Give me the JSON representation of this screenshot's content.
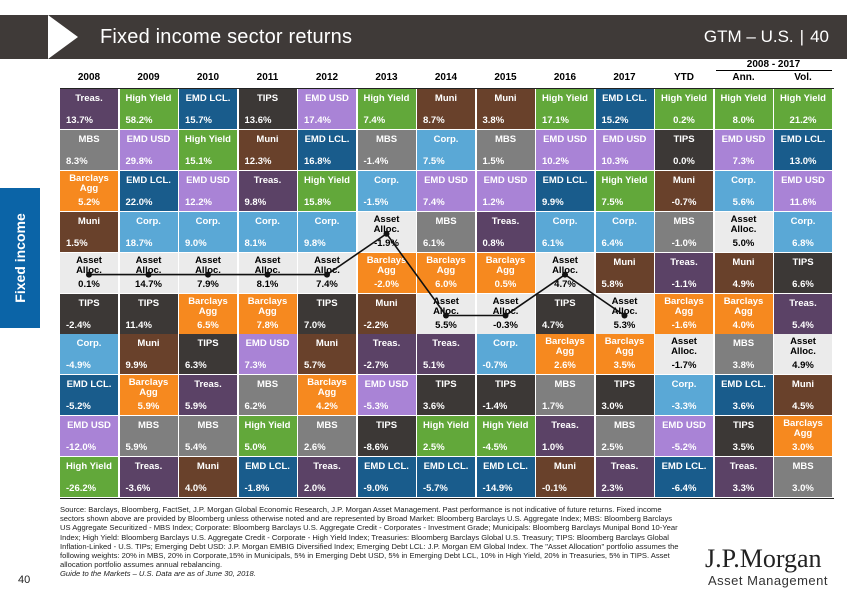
{
  "header": {
    "title": "Fixed income sector returns",
    "section": "GTM – U.S.",
    "page": "40"
  },
  "side_label": "Fixed income",
  "range_header": "2008 - 2017",
  "footnote": {
    "text": "Source: Barclays, Bloomberg, FactSet, J.P. Morgan Global Economic Research, J.P. Morgan Asset Management. Past performance is not indicative of future returns. Fixed income sectors shown above are provided by Bloomberg unless otherwise noted and are represented by Broad Market: Bloomberg Barclays U.S. Aggregate Index; MBS: Bloomberg Barclays US Aggregate Securitized - MBS Index; Corporate: Bloomberg Barclays U.S. Aggregate Credit - Corporates - Investment Grade; Municipals: Bloomberg Barclays Munipal Bond 10-Year Index; High Yield: Bloomberg Barclays U.S. Aggregate Credit - Corporate - High Yield Index; Treasuries: Bloomberg Barclays Global U.S. Treasury; TIPS: Bloomberg Barclays Global Inflation-Linked - U.S. TIPs; Emerging Debt USD: J.P. Morgan EMBIG Diversified Index; Emerging Debt LCL: J.P. Morgan EM Global Index. The \"Asset Allocation\" portfolio assumes the following weights: 20% in MBS, 20% in Corporate,15% in Municipals, 5% in Emerging Debt USD, 5% in Emerging Debt LCL, 10% in High Yield, 20% in Treasuries, 5% in TIPS. Asset allocation portfolio assumes annual rebalancing.",
    "italic": "Guide to the Markets – U.S. Data are as of June 30, 2018."
  },
  "page_number": "40",
  "logo": {
    "main": "J.P.Morgan",
    "sub": "Asset Management"
  },
  "colors": {
    "Treas.": "#5b4266",
    "High Yield": "#62a83a",
    "EMD LCL.": "#195c8c",
    "TIPS": "#3c3836",
    "EMD USD": "#a983d6",
    "Muni": "#69412b",
    "MBS": "#7f7f7f",
    "Corp.": "#5aa8d6",
    "Barclays Agg": "#f6891f",
    "Asset Alloc.": "#ebebeb"
  },
  "chart_data": {
    "type": "table",
    "title": "Fixed income sector returns",
    "columns": [
      "2008",
      "2009",
      "2010",
      "2011",
      "2012",
      "2013",
      "2014",
      "2015",
      "2016",
      "2017",
      "YTD",
      "Ann.",
      "Vol."
    ],
    "grid": [
      [
        {
          "name": "Treas.",
          "value": "13.7%"
        },
        {
          "name": "MBS",
          "value": "8.3%"
        },
        {
          "name": "Barclays Agg",
          "value": "5.2%"
        },
        {
          "name": "Muni",
          "value": "1.5%"
        },
        {
          "name": "Asset Alloc.",
          "value": "0.1%"
        },
        {
          "name": "TIPS",
          "value": "-2.4%"
        },
        {
          "name": "Corp.",
          "value": "-4.9%"
        },
        {
          "name": "EMD LCL.",
          "value": "-5.2%"
        },
        {
          "name": "EMD USD",
          "value": "-12.0%"
        },
        {
          "name": "High Yield",
          "value": "-26.2%"
        }
      ],
      [
        {
          "name": "High Yield",
          "value": "58.2%"
        },
        {
          "name": "EMD USD",
          "value": "29.8%"
        },
        {
          "name": "EMD LCL.",
          "value": "22.0%"
        },
        {
          "name": "Corp.",
          "value": "18.7%"
        },
        {
          "name": "Asset Alloc.",
          "value": "14.7%"
        },
        {
          "name": "TIPS",
          "value": "11.4%"
        },
        {
          "name": "Muni",
          "value": "9.9%"
        },
        {
          "name": "Barclays Agg",
          "value": "5.9%"
        },
        {
          "name": "MBS",
          "value": "5.9%"
        },
        {
          "name": "Treas.",
          "value": "-3.6%"
        }
      ],
      [
        {
          "name": "EMD LCL.",
          "value": "15.7%"
        },
        {
          "name": "High Yield",
          "value": "15.1%"
        },
        {
          "name": "EMD USD",
          "value": "12.2%"
        },
        {
          "name": "Corp.",
          "value": "9.0%"
        },
        {
          "name": "Asset Alloc.",
          "value": "7.9%"
        },
        {
          "name": "Barclays Agg",
          "value": "6.5%"
        },
        {
          "name": "TIPS",
          "value": "6.3%"
        },
        {
          "name": "Treas.",
          "value": "5.9%"
        },
        {
          "name": "MBS",
          "value": "5.4%"
        },
        {
          "name": "Muni",
          "value": "4.0%"
        }
      ],
      [
        {
          "name": "TIPS",
          "value": "13.6%"
        },
        {
          "name": "Muni",
          "value": "12.3%"
        },
        {
          "name": "Treas.",
          "value": "9.8%"
        },
        {
          "name": "Corp.",
          "value": "8.1%"
        },
        {
          "name": "Asset Alloc.",
          "value": "8.1%"
        },
        {
          "name": "Barclays Agg",
          "value": "7.8%"
        },
        {
          "name": "EMD USD",
          "value": "7.3%"
        },
        {
          "name": "MBS",
          "value": "6.2%"
        },
        {
          "name": "High Yield",
          "value": "5.0%"
        },
        {
          "name": "EMD LCL.",
          "value": "-1.8%"
        }
      ],
      [
        {
          "name": "EMD USD",
          "value": "17.4%"
        },
        {
          "name": "EMD LCL.",
          "value": "16.8%"
        },
        {
          "name": "High Yield",
          "value": "15.8%"
        },
        {
          "name": "Corp.",
          "value": "9.8%"
        },
        {
          "name": "Asset Alloc.",
          "value": "7.4%"
        },
        {
          "name": "TIPS",
          "value": "7.0%"
        },
        {
          "name": "Muni",
          "value": "5.7%"
        },
        {
          "name": "Barclays Agg",
          "value": "4.2%"
        },
        {
          "name": "MBS",
          "value": "2.6%"
        },
        {
          "name": "Treas.",
          "value": "2.0%"
        }
      ],
      [
        {
          "name": "High Yield",
          "value": "7.4%"
        },
        {
          "name": "MBS",
          "value": "-1.4%"
        },
        {
          "name": "Corp.",
          "value": "-1.5%"
        },
        {
          "name": "Asset Alloc.",
          "value": "-1.9%"
        },
        {
          "name": "Barclays Agg",
          "value": "-2.0%"
        },
        {
          "name": "Muni",
          "value": "-2.2%"
        },
        {
          "name": "Treas.",
          "value": "-2.7%"
        },
        {
          "name": "EMD USD",
          "value": "-5.3%"
        },
        {
          "name": "TIPS",
          "value": "-8.6%"
        },
        {
          "name": "EMD LCL.",
          "value": "-9.0%"
        }
      ],
      [
        {
          "name": "Muni",
          "value": "8.7%"
        },
        {
          "name": "Corp.",
          "value": "7.5%"
        },
        {
          "name": "EMD USD",
          "value": "7.4%"
        },
        {
          "name": "MBS",
          "value": "6.1%"
        },
        {
          "name": "Barclays Agg",
          "value": "6.0%"
        },
        {
          "name": "Asset Alloc.",
          "value": "5.5%"
        },
        {
          "name": "Treas.",
          "value": "5.1%"
        },
        {
          "name": "TIPS",
          "value": "3.6%"
        },
        {
          "name": "High Yield",
          "value": "2.5%"
        },
        {
          "name": "EMD LCL.",
          "value": "-5.7%"
        }
      ],
      [
        {
          "name": "Muni",
          "value": "3.8%"
        },
        {
          "name": "MBS",
          "value": "1.5%"
        },
        {
          "name": "EMD USD",
          "value": "1.2%"
        },
        {
          "name": "Treas.",
          "value": "0.8%"
        },
        {
          "name": "Barclays Agg",
          "value": "0.5%"
        },
        {
          "name": "Asset Alloc.",
          "value": "-0.3%"
        },
        {
          "name": "Corp.",
          "value": "-0.7%"
        },
        {
          "name": "TIPS",
          "value": "-1.4%"
        },
        {
          "name": "High Yield",
          "value": "-4.5%"
        },
        {
          "name": "EMD LCL.",
          "value": "-14.9%"
        }
      ],
      [
        {
          "name": "High Yield",
          "value": "17.1%"
        },
        {
          "name": "EMD USD",
          "value": "10.2%"
        },
        {
          "name": "EMD LCL.",
          "value": "9.9%"
        },
        {
          "name": "Corp.",
          "value": "6.1%"
        },
        {
          "name": "Asset Alloc.",
          "value": "4.7%"
        },
        {
          "name": "TIPS",
          "value": "4.7%"
        },
        {
          "name": "Barclays Agg",
          "value": "2.6%"
        },
        {
          "name": "MBS",
          "value": "1.7%"
        },
        {
          "name": "Treas.",
          "value": "1.0%"
        },
        {
          "name": "Muni",
          "value": "-0.1%"
        }
      ],
      [
        {
          "name": "EMD LCL.",
          "value": "15.2%"
        },
        {
          "name": "EMD USD",
          "value": "10.3%"
        },
        {
          "name": "High Yield",
          "value": "7.5%"
        },
        {
          "name": "Corp.",
          "value": "6.4%"
        },
        {
          "name": "Muni",
          "value": "5.8%"
        },
        {
          "name": "Asset Alloc.",
          "value": "5.3%"
        },
        {
          "name": "Barclays Agg",
          "value": "3.5%"
        },
        {
          "name": "TIPS",
          "value": "3.0%"
        },
        {
          "name": "MBS",
          "value": "2.5%"
        },
        {
          "name": "Treas.",
          "value": "2.3%"
        }
      ],
      [
        {
          "name": "High Yield",
          "value": "0.2%"
        },
        {
          "name": "TIPS",
          "value": "0.0%"
        },
        {
          "name": "Muni",
          "value": "-0.7%"
        },
        {
          "name": "MBS",
          "value": "-1.0%"
        },
        {
          "name": "Treas.",
          "value": "-1.1%"
        },
        {
          "name": "Barclays Agg",
          "value": "-1.6%"
        },
        {
          "name": "Asset Alloc.",
          "value": "-1.7%"
        },
        {
          "name": "Corp.",
          "value": "-3.3%"
        },
        {
          "name": "EMD USD",
          "value": "-5.2%"
        },
        {
          "name": "EMD LCL.",
          "value": "-6.4%"
        }
      ],
      [
        {
          "name": "High Yield",
          "value": "8.0%"
        },
        {
          "name": "EMD USD",
          "value": "7.3%"
        },
        {
          "name": "Corp.",
          "value": "5.6%"
        },
        {
          "name": "Asset Alloc.",
          "value": "5.0%"
        },
        {
          "name": "Muni",
          "value": "4.9%"
        },
        {
          "name": "Barclays Agg",
          "value": "4.0%"
        },
        {
          "name": "MBS",
          "value": "3.8%"
        },
        {
          "name": "EMD LCL.",
          "value": "3.6%"
        },
        {
          "name": "TIPS",
          "value": "3.5%"
        },
        {
          "name": "Treas.",
          "value": "3.3%"
        }
      ],
      [
        {
          "name": "High Yield",
          "value": "21.2%"
        },
        {
          "name": "EMD LCL.",
          "value": "13.0%"
        },
        {
          "name": "EMD USD",
          "value": "11.6%"
        },
        {
          "name": "Corp.",
          "value": "6.8%"
        },
        {
          "name": "TIPS",
          "value": "6.6%"
        },
        {
          "name": "Treas.",
          "value": "5.4%"
        },
        {
          "name": "Asset Alloc.",
          "value": "4.9%"
        },
        {
          "name": "Muni",
          "value": "4.5%"
        },
        {
          "name": "Barclays Agg",
          "value": "3.0%"
        },
        {
          "name": "MBS",
          "value": "3.0%"
        }
      ]
    ],
    "asset_alloc_line_columns": [
      "2008",
      "2009",
      "2010",
      "2011",
      "2012",
      "2013",
      "2014",
      "2015",
      "2016",
      "2017"
    ]
  }
}
